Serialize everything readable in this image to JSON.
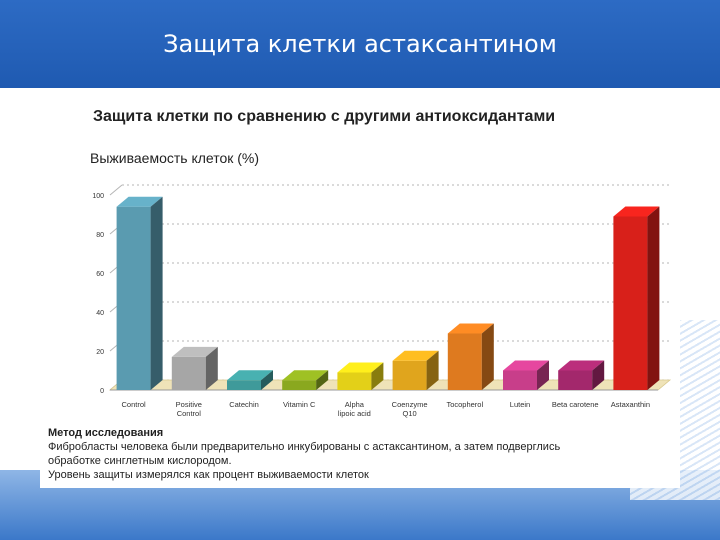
{
  "slide": {
    "title": "Защита клетки астаксантином"
  },
  "chart_data": {
    "type": "bar",
    "title": "Защита клетки по сравнению с другими антиоксидантами",
    "ylabel": "Выживаемость клеток (%)",
    "xlabel": "",
    "ylim": [
      0,
      100
    ],
    "yticks": [
      0,
      20,
      40,
      60,
      80,
      100
    ],
    "grid": true,
    "categories": [
      "Control",
      "Positive Control",
      "Catechin",
      "Vitamin C",
      "Alpha lipoic acid",
      "Coenzyme Q10",
      "Tocopherol",
      "Lutein",
      "Beta carotene",
      "Astaxanthin"
    ],
    "category_lines": [
      [
        "Control"
      ],
      [
        "Positive",
        "Control"
      ],
      [
        "Catechin"
      ],
      [
        "Vitamin C"
      ],
      [
        "Alpha",
        "lipoic acid"
      ],
      [
        "Coenzyme",
        "Q10"
      ],
      [
        "Tocopherol"
      ],
      [
        "Lutein"
      ],
      [
        "Beta carotene"
      ],
      [
        "Astaxanthin"
      ]
    ],
    "values": [
      94,
      17,
      5,
      5,
      9,
      15,
      29,
      10,
      10,
      89
    ],
    "colors": [
      "#5a9bb0",
      "#a6a6a6",
      "#3f9a9a",
      "#8aa81f",
      "#e3d018",
      "#e0a51d",
      "#de7a1f",
      "#c83e8a",
      "#a3286c",
      "#d8201a"
    ]
  },
  "method": {
    "title": "Метод исследования",
    "lines": [
      "Фибробласты человека  были предварительно инкубированы с астаксантином, а затем подверглись",
      "обработке  синглетным кислородом.",
      "Уровень защиты измерялся как процент выживаемости клеток"
    ]
  }
}
